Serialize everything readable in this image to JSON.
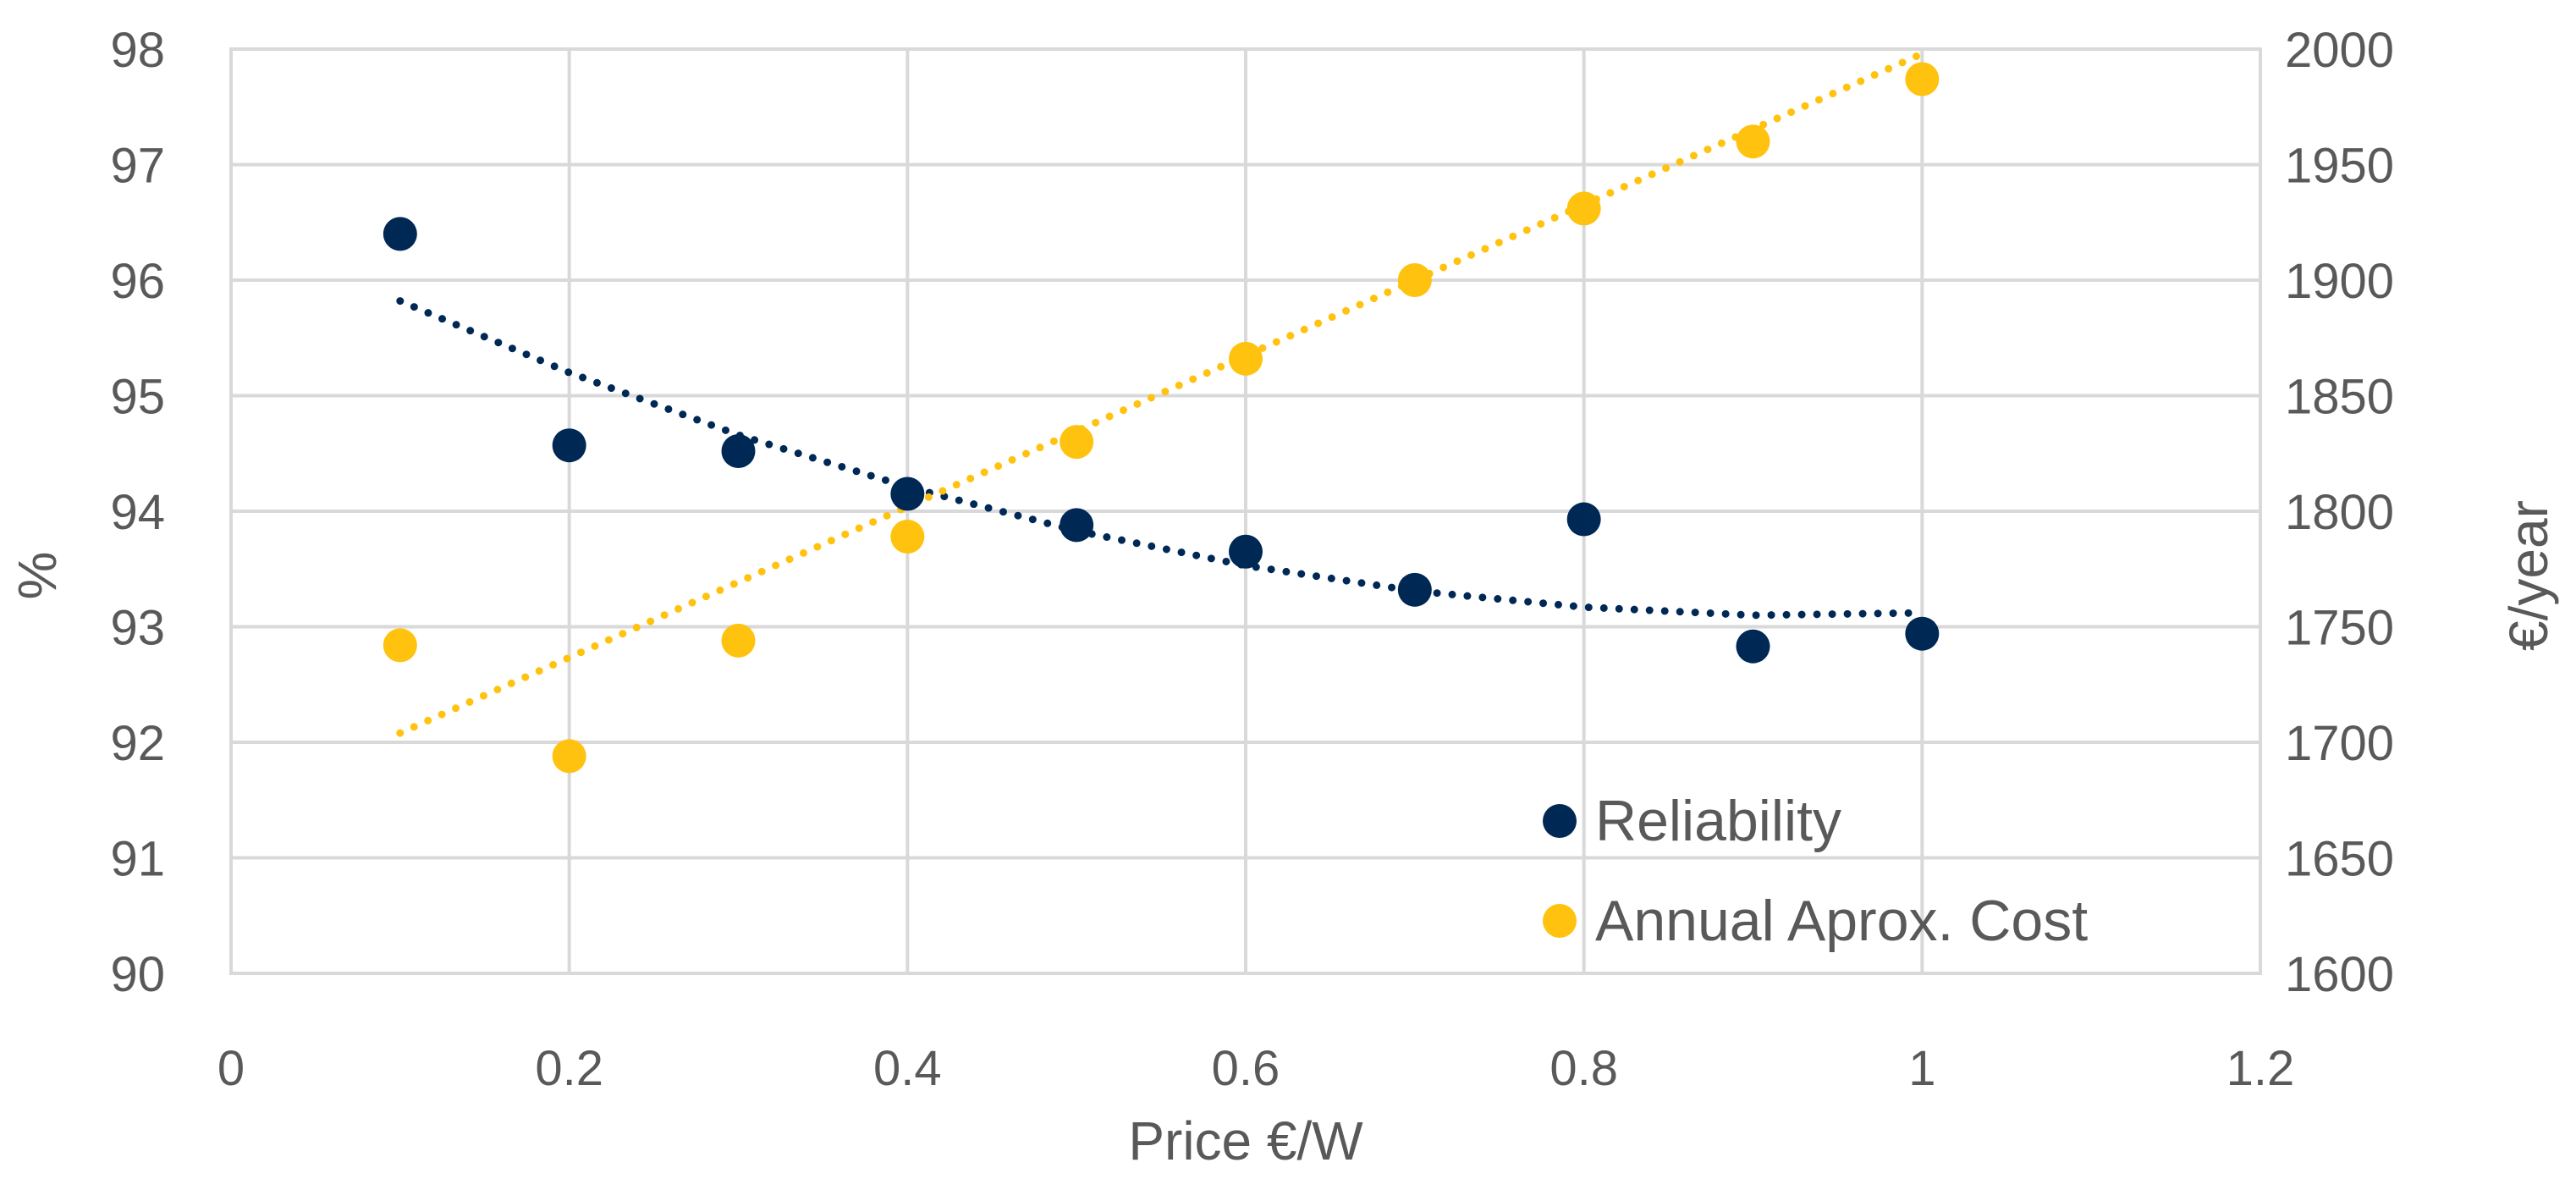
{
  "chart_data": {
    "type": "scatter",
    "title": "",
    "xlabel": "Price €/W",
    "ylabel": "%",
    "y2label": "€/year",
    "xlim": [
      0,
      1.2
    ],
    "xticks": [
      "0",
      "0.2",
      "0.4",
      "0.6",
      "0.8",
      "1",
      "1.2"
    ],
    "xtick_values": [
      0,
      0.2,
      0.4,
      0.6,
      0.8,
      1.0,
      1.2
    ],
    "ylim": [
      90,
      98
    ],
    "yticks": [
      "90",
      "91",
      "92",
      "93",
      "94",
      "95",
      "96",
      "97",
      "98"
    ],
    "ytick_values": [
      90,
      91,
      92,
      93,
      94,
      95,
      96,
      97,
      98
    ],
    "y2lim": [
      1600,
      2000
    ],
    "y2ticks": [
      "1600",
      "1650",
      "1700",
      "1750",
      "1800",
      "1850",
      "1900",
      "1950",
      "2000"
    ],
    "y2tick_values": [
      1600,
      1650,
      1700,
      1750,
      1800,
      1850,
      1900,
      1950,
      2000
    ],
    "grid": true,
    "legend_position": "bottom-right",
    "series": [
      {
        "name": "Reliability",
        "axis": "left",
        "color": "#002855",
        "x": [
          0.1,
          0.2,
          0.3,
          0.4,
          0.5,
          0.6,
          0.7,
          0.8,
          0.9,
          1.0
        ],
        "y": [
          96.4,
          94.57,
          94.52,
          94.15,
          93.88,
          93.65,
          93.32,
          93.93,
          92.83,
          92.94
        ],
        "trend": {
          "style": "dotted",
          "x": [
            0.1,
            0.2,
            0.3,
            0.4,
            0.5,
            0.6,
            0.7,
            0.8,
            0.9,
            1.0
          ],
          "y": [
            95.82,
            95.2,
            94.66,
            94.21,
            93.83,
            93.53,
            93.31,
            93.17,
            93.1,
            93.12
          ]
        }
      },
      {
        "name": "Annual Aprox. Cost",
        "axis": "right",
        "color": "#FFC20E",
        "x": [
          0.1,
          0.2,
          0.3,
          0.4,
          0.5,
          0.6,
          0.7,
          0.8,
          0.9,
          1.0
        ],
        "y": [
          1742,
          1694,
          1744,
          1789,
          1830,
          1866,
          1900,
          1931,
          1960,
          1987
        ],
        "trend": {
          "style": "dotted",
          "x": [
            0.1,
            1.0
          ],
          "y": [
            1704,
            1998
          ]
        }
      }
    ]
  }
}
